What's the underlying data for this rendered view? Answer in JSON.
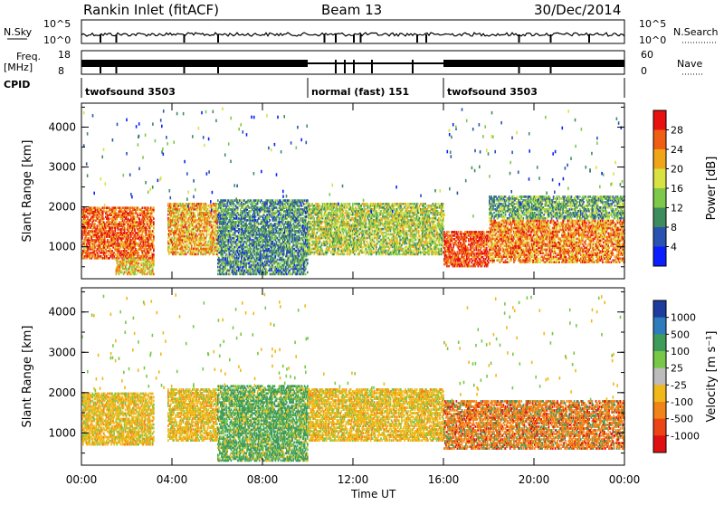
{
  "header": {
    "station": "Rankin Inlet (fitACF)",
    "beam": "Beam 13",
    "date": "30/Dec/2014"
  },
  "strips": {
    "nsky_label": "N.Sky",
    "nsky_ticks": [
      "10^5",
      "10^0"
    ],
    "nsearch_label": "N.Search",
    "nsearch_ticks": [
      "10^5",
      "10^0"
    ],
    "freq_label": "Freq.",
    "freq_unit": "[MHz]",
    "freq_ticks": [
      "18",
      "8"
    ],
    "nave_label": "Nave",
    "nave_ticks": [
      "60",
      "0"
    ],
    "cpid_label": "CPID",
    "cpid_segments": [
      {
        "label": "twofsound 3503",
        "start": 0,
        "end": 10
      },
      {
        "label": "normal (fast) 151",
        "start": 10,
        "end": 16
      },
      {
        "label": "twofsound 3503",
        "start": 16,
        "end": 24
      }
    ]
  },
  "chart_data": [
    {
      "type": "heatmap",
      "name": "power",
      "xlabel": "",
      "ylabel": "Slant Range [km]",
      "ylim": [
        200,
        4600
      ],
      "yticks": [
        "1000",
        "2000",
        "3000",
        "4000"
      ],
      "colorbar_label": "Power [dB]",
      "colorbar_ticks": [
        "28",
        "24",
        "20",
        "16",
        "12",
        "8",
        "4"
      ],
      "colors": [
        "#0a1eff",
        "#2a52b0",
        "#3e8c5e",
        "#7ec84a",
        "#d8e240",
        "#f0a418",
        "#ef5e14",
        "#e81010"
      ],
      "colorbar_values": [
        0,
        4,
        8,
        12,
        16,
        20,
        24,
        28,
        32
      ],
      "echo_bands": [
        {
          "t_start": 0.0,
          "t_end": 3.2,
          "r_low": 700,
          "r_high": 2000,
          "value": 26
        },
        {
          "t_start": 1.5,
          "t_end": 3.2,
          "r_low": 300,
          "r_high": 700,
          "value": 20
        },
        {
          "t_start": 3.8,
          "t_end": 6.0,
          "r_low": 800,
          "r_high": 2100,
          "value": 22
        },
        {
          "t_start": 6.0,
          "t_end": 10.0,
          "r_low": 300,
          "r_high": 2200,
          "value": 10
        },
        {
          "t_start": 10.0,
          "t_end": 16.0,
          "r_low": 800,
          "r_high": 2100,
          "value": 16
        },
        {
          "t_start": 16.0,
          "t_end": 18.0,
          "r_low": 500,
          "r_high": 1400,
          "value": 28
        },
        {
          "t_start": 18.0,
          "t_end": 24.0,
          "r_low": 600,
          "r_high": 1700,
          "value": 24
        },
        {
          "t_start": 18.0,
          "t_end": 24.0,
          "r_low": 1700,
          "r_high": 2300,
          "value": 12
        }
      ]
    },
    {
      "type": "heatmap",
      "name": "velocity",
      "xlabel": "Time UT",
      "ylabel": "Slant Range [km]",
      "ylim": [
        200,
        4600
      ],
      "yticks": [
        "1000",
        "2000",
        "3000",
        "4000"
      ],
      "colorbar_label": "Velocity [m s⁻¹]",
      "colorbar_ticks": [
        "1000",
        "500",
        "100",
        "25",
        "-25",
        "-100",
        "-500",
        "-1000"
      ],
      "colors": [
        "#1e3ca0",
        "#2f7cbc",
        "#3e9c5a",
        "#76c846",
        "#bcbcbc",
        "#f0b818",
        "#f08418",
        "#ec4414",
        "#e01010"
      ],
      "echo_bands": [
        {
          "t_start": 0.0,
          "t_end": 3.2,
          "r_low": 700,
          "r_high": 2000,
          "value": -100
        },
        {
          "t_start": 3.8,
          "t_end": 6.0,
          "r_low": 800,
          "r_high": 2100,
          "value": -100
        },
        {
          "t_start": 6.0,
          "t_end": 10.0,
          "r_low": 300,
          "r_high": 2200,
          "value": 100
        },
        {
          "t_start": 10.0,
          "t_end": 16.0,
          "r_low": 800,
          "r_high": 2100,
          "value": -100
        },
        {
          "t_start": 16.0,
          "t_end": 24.0,
          "r_low": 600,
          "r_high": 1800,
          "value": -500
        }
      ]
    }
  ],
  "time_axis": {
    "label": "Time UT",
    "ticks": [
      "00:00",
      "04:00",
      "08:00",
      "12:00",
      "16:00",
      "20:00",
      "00:00"
    ],
    "tick_hours": [
      0,
      4,
      8,
      12,
      16,
      20,
      24
    ]
  }
}
